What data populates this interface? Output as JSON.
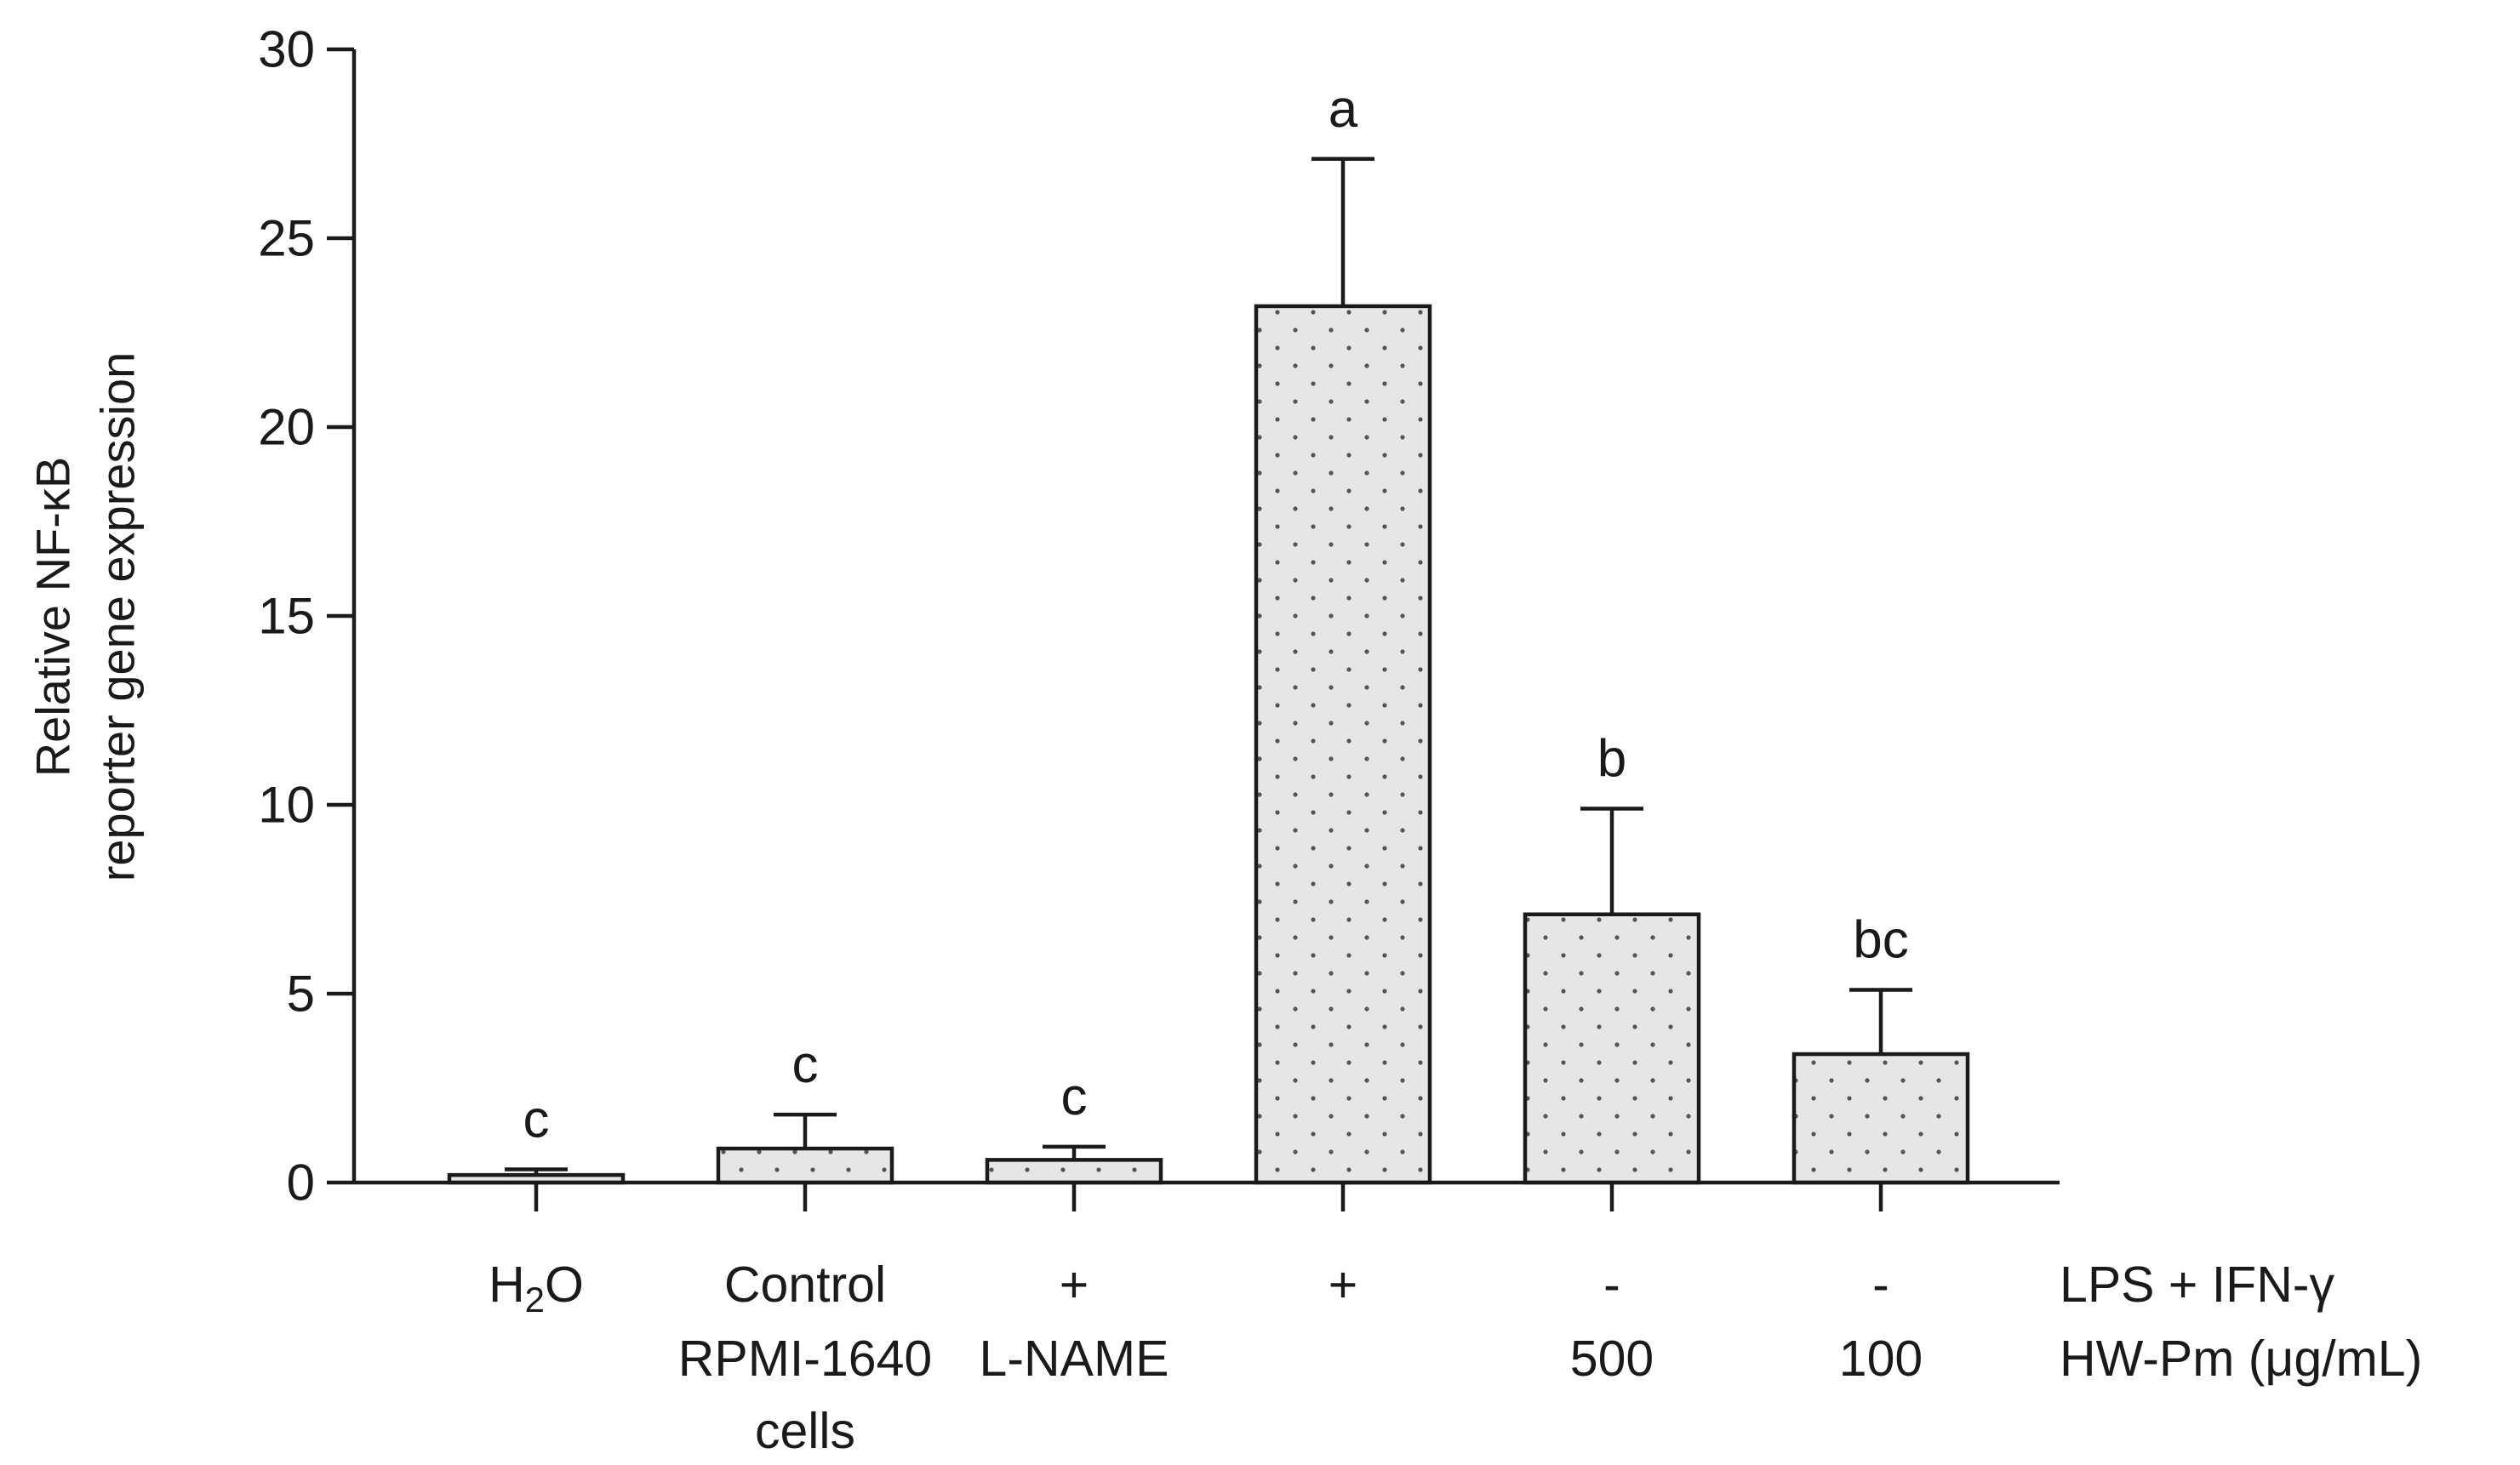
{
  "chart_data": {
    "type": "bar",
    "ylabel": [
      "Relative NF-κB",
      "reporter gene expression"
    ],
    "ylim": [
      0,
      30
    ],
    "yticks": [
      0,
      5,
      10,
      15,
      20,
      25,
      30
    ],
    "grid": false,
    "legend": "none",
    "fill": "#e6e6e6",
    "bars": [
      {
        "value": 0.2,
        "error": 0.15,
        "letter": "c",
        "rows": [
          [
            {
              "t": "H"
            },
            {
              "t": "2",
              "sub": true
            },
            {
              "t": "O"
            }
          ],
          null,
          null
        ]
      },
      {
        "value": 0.9,
        "error": 0.9,
        "letter": "c",
        "rows": [
          [
            {
              "t": "Control"
            }
          ],
          [
            {
              "t": "RPMI-1640"
            }
          ],
          [
            {
              "t": "cells"
            }
          ]
        ]
      },
      {
        "value": 0.6,
        "error": 0.35,
        "letter": "c",
        "rows": [
          [
            {
              "t": "+"
            }
          ],
          [
            {
              "t": "L-NAME"
            }
          ],
          null
        ]
      },
      {
        "value": 23.2,
        "error": 3.9,
        "letter": "a",
        "rows": [
          [
            {
              "t": "+"
            }
          ],
          null,
          null
        ]
      },
      {
        "value": 7.1,
        "error": 2.8,
        "letter": "b",
        "rows": [
          [
            {
              "t": "-"
            }
          ],
          [
            {
              "t": "500"
            }
          ],
          null
        ]
      },
      {
        "value": 3.4,
        "error": 1.7,
        "letter": "bc",
        "rows": [
          [
            {
              "t": "-"
            }
          ],
          [
            {
              "t": "100"
            }
          ],
          null
        ]
      }
    ],
    "row_labels": [
      "LPS + IFN-γ",
      "HW-Pm  (μg/mL)"
    ]
  }
}
